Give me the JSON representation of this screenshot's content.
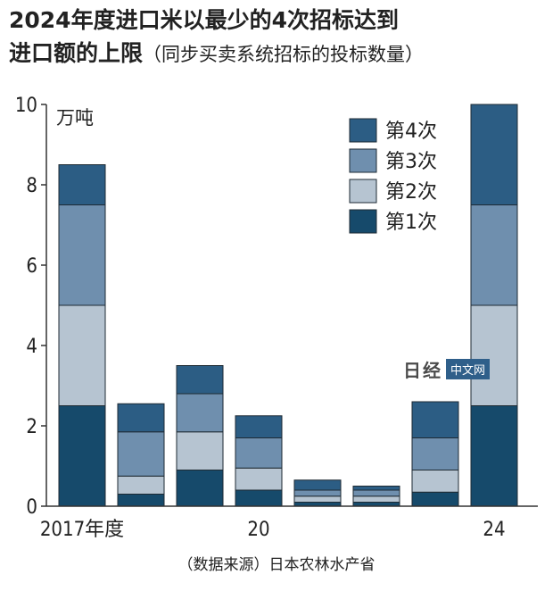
{
  "title": {
    "line1": "2024年度进口米以最少的4次招标达到",
    "line2": "进口额的上限",
    "subtitle": "（同步买卖系统招标的投标数量）"
  },
  "source": "（数据来源）日本农林水产省",
  "watermark": {
    "logo": "日经",
    "box": "中文网"
  },
  "chart_data": {
    "type": "bar",
    "stacked": true,
    "unit_label": "万吨",
    "x": [
      2017,
      2018,
      2019,
      2020,
      2021,
      2022,
      2023,
      2024
    ],
    "x_tick_labels": [
      {
        "x": 2017,
        "label": "2017年度"
      },
      {
        "x": 2020,
        "label": "20"
      },
      {
        "x": 2024,
        "label": "24"
      }
    ],
    "ylim": [
      0,
      10
    ],
    "y_ticks": [
      0,
      2,
      4,
      6,
      8,
      10
    ],
    "series": [
      {
        "name": "第1次",
        "color": "#164a6b",
        "values": [
          2.5,
          0.3,
          0.9,
          0.4,
          0.1,
          0.1,
          0.35,
          2.5
        ]
      },
      {
        "name": "第2次",
        "color": "#b6c4d1",
        "values": [
          2.5,
          0.45,
          0.95,
          0.55,
          0.15,
          0.15,
          0.55,
          2.5
        ]
      },
      {
        "name": "第3次",
        "color": "#6f8fae",
        "values": [
          2.5,
          1.1,
          0.95,
          0.75,
          0.15,
          0.15,
          0.8,
          2.5
        ]
      },
      {
        "name": "第4次",
        "color": "#2c5d84",
        "values": [
          1.0,
          0.7,
          0.7,
          0.55,
          0.25,
          0.1,
          0.9,
          2.5
        ]
      }
    ],
    "legend_order": [
      "第4次",
      "第3次",
      "第2次",
      "第1次"
    ],
    "legend_position": "top-right",
    "grid": false
  }
}
